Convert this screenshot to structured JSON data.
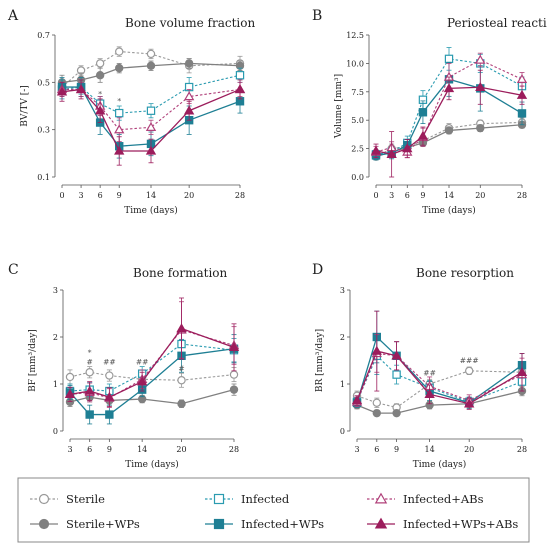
{
  "colors": {
    "sterile": "#999999",
    "sterile_wps": "#808080",
    "infected": "#2a9bb0",
    "infected_wps": "#1e7f94",
    "infected_abs": "#b0407a",
    "infected_wps_abs": "#9c1d5c",
    "axis": "#555555"
  },
  "legend": [
    {
      "name": "Sterile",
      "marker": "circle-open",
      "color_key": "sterile"
    },
    {
      "name": "Infected",
      "marker": "square-open",
      "color_key": "infected"
    },
    {
      "name": "Infected+ABs",
      "marker": "triangle-open",
      "color_key": "infected_abs"
    },
    {
      "name": "Sterile+WPs",
      "marker": "circle-filled",
      "color_key": "sterile_wps"
    },
    {
      "name": "Infected+WPs",
      "marker": "square-filled",
      "color_key": "infected_wps"
    },
    {
      "name": "Infected+WPs+ABs",
      "marker": "triangle-filled",
      "color_key": "infected_wps_abs"
    }
  ],
  "chart_data": [
    {
      "type": "line",
      "letter": "A",
      "title": "Bone volume fraction",
      "xlabel": "Time (days)",
      "ylabel": "BV/TV [-]",
      "x": [
        0,
        3,
        6,
        9,
        14,
        20,
        28
      ],
      "x_ticks": [
        "0",
        "3",
        "6",
        "9",
        "14",
        "20",
        "28"
      ],
      "ylim": [
        0.1,
        0.7
      ],
      "y_ticks": [
        "0.1",
        "0.3",
        "0.5",
        "0.7"
      ],
      "series": [
        {
          "name": "Sterile",
          "values": [
            0.48,
            0.55,
            0.58,
            0.63,
            0.62,
            0.57,
            0.58
          ],
          "err": [
            0.03,
            0.02,
            0.02,
            0.02,
            0.02,
            0.03,
            0.03
          ]
        },
        {
          "name": "Sterile+WPs",
          "values": [
            0.5,
            0.51,
            0.53,
            0.56,
            0.57,
            0.58,
            0.57
          ],
          "err": [
            0.03,
            0.03,
            0.03,
            0.02,
            0.02,
            0.02,
            0.02
          ]
        },
        {
          "name": "Infected",
          "values": [
            0.47,
            0.48,
            0.41,
            0.37,
            0.38,
            0.48,
            0.53
          ],
          "err": [
            0.04,
            0.03,
            0.03,
            0.03,
            0.03,
            0.04,
            0.03
          ]
        },
        {
          "name": "Infected+WPs",
          "values": [
            0.48,
            0.48,
            0.33,
            0.23,
            0.24,
            0.34,
            0.42
          ],
          "err": [
            0.04,
            0.04,
            0.05,
            0.05,
            0.05,
            0.06,
            0.05
          ]
        },
        {
          "name": "Infected+ABs",
          "values": [
            0.47,
            0.47,
            0.4,
            0.3,
            0.31,
            0.44,
            0.47
          ],
          "err": [
            0.03,
            0.03,
            0.04,
            0.05,
            0.03,
            0.03,
            0.03
          ]
        },
        {
          "name": "Infected+WPs+ABs",
          "values": [
            0.46,
            0.47,
            0.38,
            0.21,
            0.21,
            0.38,
            0.47
          ],
          "err": [
            0.04,
            0.04,
            0.05,
            0.06,
            0.05,
            0.04,
            0.04
          ]
        }
      ],
      "annotations": [
        {
          "text": "*",
          "x": 6,
          "y": 0.44
        },
        {
          "text": "*",
          "x": 9,
          "y": 0.41
        }
      ]
    },
    {
      "type": "line",
      "letter": "B",
      "title": "Periosteal reaction",
      "xlabel": "Time (days)",
      "ylabel": "Volume [mm³]",
      "x": [
        0,
        3,
        6,
        9,
        14,
        20,
        28
      ],
      "x_ticks": [
        "0",
        "3",
        "6",
        "9",
        "14",
        "20",
        "28"
      ],
      "ylim": [
        0,
        12.5
      ],
      "y_ticks": [
        "0.0",
        "2.5",
        "5.0",
        "7.5",
        "10.0",
        "12.5"
      ],
      "series": [
        {
          "name": "Sterile",
          "values": [
            1.8,
            2.5,
            2.7,
            3.2,
            4.3,
            4.7,
            4.8
          ],
          "err": [
            0.3,
            0.4,
            0.4,
            0.4,
            0.4,
            0.3,
            0.4
          ]
        },
        {
          "name": "Sterile+WPs",
          "values": [
            1.8,
            2.2,
            2.6,
            3.0,
            4.1,
            4.3,
            4.6
          ],
          "err": [
            0.3,
            0.3,
            0.3,
            0.3,
            0.3,
            0.3,
            0.3
          ]
        },
        {
          "name": "Infected",
          "values": [
            2.0,
            2.2,
            3.0,
            6.8,
            10.4,
            10.0,
            8.0
          ],
          "err": [
            0.4,
            0.5,
            0.6,
            0.8,
            1.0,
            0.8,
            0.8
          ]
        },
        {
          "name": "Infected+WPs",
          "values": [
            1.9,
            2.1,
            2.8,
            5.7,
            8.6,
            7.8,
            5.6
          ],
          "err": [
            0.4,
            0.5,
            0.5,
            1.0,
            1.5,
            2.0,
            1.0
          ]
        },
        {
          "name": "Infected+ABs",
          "values": [
            2.2,
            2.6,
            2.2,
            3.5,
            8.8,
            10.3,
            8.6
          ],
          "err": [
            0.5,
            0.5,
            0.5,
            0.8,
            1.2,
            0.6,
            0.6
          ]
        },
        {
          "name": "Infected+WPs+ABs",
          "values": [
            2.3,
            2.0,
            2.5,
            3.6,
            7.8,
            7.9,
            7.2
          ],
          "err": [
            0.6,
            2.0,
            0.8,
            0.8,
            1.0,
            1.5,
            0.8
          ]
        }
      ],
      "annotations": []
    },
    {
      "type": "line",
      "letter": "C",
      "title": "Bone formation",
      "xlabel": "Time (days)",
      "ylabel": "BF [mm³/day]",
      "x": [
        3,
        6,
        9,
        14,
        20,
        28
      ],
      "x_ticks": [
        "3",
        "6",
        "9",
        "14",
        "20",
        "28"
      ],
      "ylim": [
        0,
        3
      ],
      "y_ticks": [
        "0",
        "1",
        "2",
        "3"
      ],
      "series": [
        {
          "name": "Sterile",
          "values": [
            1.15,
            1.25,
            1.18,
            1.1,
            1.08,
            1.2
          ],
          "err": [
            0.15,
            0.12,
            0.12,
            0.12,
            0.15,
            0.15
          ]
        },
        {
          "name": "Sterile+WPs",
          "values": [
            0.62,
            0.72,
            0.65,
            0.68,
            0.58,
            0.88
          ],
          "err": [
            0.1,
            0.1,
            0.1,
            0.08,
            0.08,
            0.12
          ]
        },
        {
          "name": "Infected",
          "values": [
            0.85,
            0.88,
            0.85,
            1.22,
            1.85,
            1.72
          ],
          "err": [
            0.15,
            0.15,
            0.15,
            0.15,
            0.3,
            0.25
          ]
        },
        {
          "name": "Infected+WPs",
          "values": [
            0.82,
            0.35,
            0.35,
            0.88,
            1.6,
            1.75
          ],
          "err": [
            0.15,
            0.2,
            0.2,
            0.15,
            0.35,
            0.3
          ]
        },
        {
          "name": "Infected+ABs",
          "values": [
            0.78,
            0.82,
            0.7,
            1.1,
            2.15,
            1.82
          ],
          "err": [
            0.15,
            0.2,
            0.2,
            0.2,
            0.6,
            0.4
          ]
        },
        {
          "name": "Infected+WPs+ABs",
          "values": [
            0.78,
            0.85,
            0.72,
            1.05,
            2.18,
            1.78
          ],
          "err": [
            0.15,
            0.2,
            0.2,
            0.2,
            0.65,
            0.5
          ]
        }
      ],
      "annotations": [
        {
          "text": "*",
          "x": 6,
          "y": 1.62
        },
        {
          "text": "#",
          "x": 6,
          "y": 1.42
        },
        {
          "text": "##",
          "x": 9,
          "y": 1.42
        },
        {
          "text": "##",
          "x": 14,
          "y": 1.42
        },
        {
          "text": "#",
          "x": 20,
          "y": 1.28
        }
      ]
    },
    {
      "type": "line",
      "letter": "D",
      "title": "Bone resorption",
      "xlabel": "Time (days)",
      "ylabel": "BR [mm³/day]",
      "x": [
        3,
        6,
        9,
        14,
        20,
        28
      ],
      "x_ticks": [
        "3",
        "6",
        "9",
        "14",
        "20",
        "28"
      ],
      "ylim": [
        0,
        3
      ],
      "y_ticks": [
        "0",
        "1",
        "2",
        "3"
      ],
      "series": [
        {
          "name": "Sterile",
          "values": [
            0.75,
            0.6,
            0.5,
            1.0,
            1.28,
            1.25
          ],
          "err": [
            0.1,
            0.1,
            0.08,
            0.1,
            0.08,
            0.1
          ]
        },
        {
          "name": "Sterile+WPs",
          "values": [
            0.55,
            0.38,
            0.38,
            0.55,
            0.58,
            0.85
          ],
          "err": [
            0.08,
            0.06,
            0.06,
            0.08,
            0.08,
            0.1
          ]
        },
        {
          "name": "Infected",
          "values": [
            0.62,
            1.6,
            1.2,
            0.92,
            0.62,
            1.05
          ],
          "err": [
            0.1,
            0.4,
            0.2,
            0.15,
            0.1,
            0.2
          ]
        },
        {
          "name": "Infected+WPs",
          "values": [
            0.6,
            2.0,
            1.6,
            0.85,
            0.6,
            1.4
          ],
          "err": [
            0.1,
            0.55,
            0.3,
            0.2,
            0.12,
            0.25
          ]
        },
        {
          "name": "Infected+ABs",
          "values": [
            0.62,
            1.65,
            1.6,
            0.95,
            0.65,
            1.2
          ],
          "err": [
            0.1,
            0.4,
            0.3,
            0.2,
            0.12,
            0.35
          ]
        },
        {
          "name": "Infected+WPs+ABs",
          "values": [
            0.65,
            1.7,
            1.6,
            0.78,
            0.58,
            1.25
          ],
          "err": [
            0.1,
            0.85,
            0.3,
            0.2,
            0.12,
            0.4
          ]
        }
      ],
      "annotations": [
        {
          "text": "##",
          "x": 14,
          "y": 1.18
        },
        {
          "text": "###",
          "x": 20,
          "y": 1.45
        }
      ]
    }
  ]
}
